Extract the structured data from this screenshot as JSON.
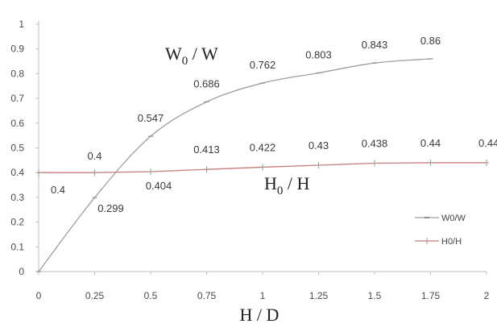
{
  "chart_data": {
    "type": "line",
    "xlabel": "H / D",
    "ylabel": "",
    "xlim": [
      0,
      2
    ],
    "ylim": [
      0,
      1
    ],
    "x_ticks": [
      "0",
      "0.25",
      "0.5",
      "0.75",
      "1",
      "1.25",
      "1.5",
      "1.75",
      "2"
    ],
    "y_ticks": [
      "0",
      "0.1",
      "0.2",
      "0.3",
      "0.4",
      "0.5",
      "0.6",
      "0.7",
      "0.8",
      "0.9",
      "1"
    ],
    "grid": false,
    "legend_position": "right",
    "series": [
      {
        "name": "W0/W",
        "color": "#9e9e9e",
        "x": [
          0,
          0.25,
          0.5,
          0.75,
          1,
          1.25,
          1.5,
          1.75
        ],
        "values": [
          0,
          0.299,
          0.547,
          0.686,
          0.762,
          0.803,
          0.843,
          0.86
        ],
        "data_labels": [
          "",
          "0.299",
          "0.547",
          "0.686",
          "0.762",
          "0.803",
          "0.843",
          "0.86"
        ]
      },
      {
        "name": "H0/H",
        "color": "#c97b7b",
        "x": [
          0,
          0.25,
          0.5,
          0.75,
          1,
          1.25,
          1.5,
          1.75,
          2
        ],
        "values": [
          0.4,
          0.4,
          0.404,
          0.413,
          0.422,
          0.43,
          0.438,
          0.44,
          0.44
        ],
        "data_labels": [
          "0.4",
          "0.4",
          "0.404",
          "0.413",
          "0.422",
          "0.43",
          "0.438",
          "0.44",
          "0.44"
        ]
      }
    ],
    "annotations": [
      {
        "base": "W",
        "sub": "0",
        "rest": " / W"
      },
      {
        "base": "H",
        "sub": "0",
        "rest": " / H"
      }
    ]
  }
}
